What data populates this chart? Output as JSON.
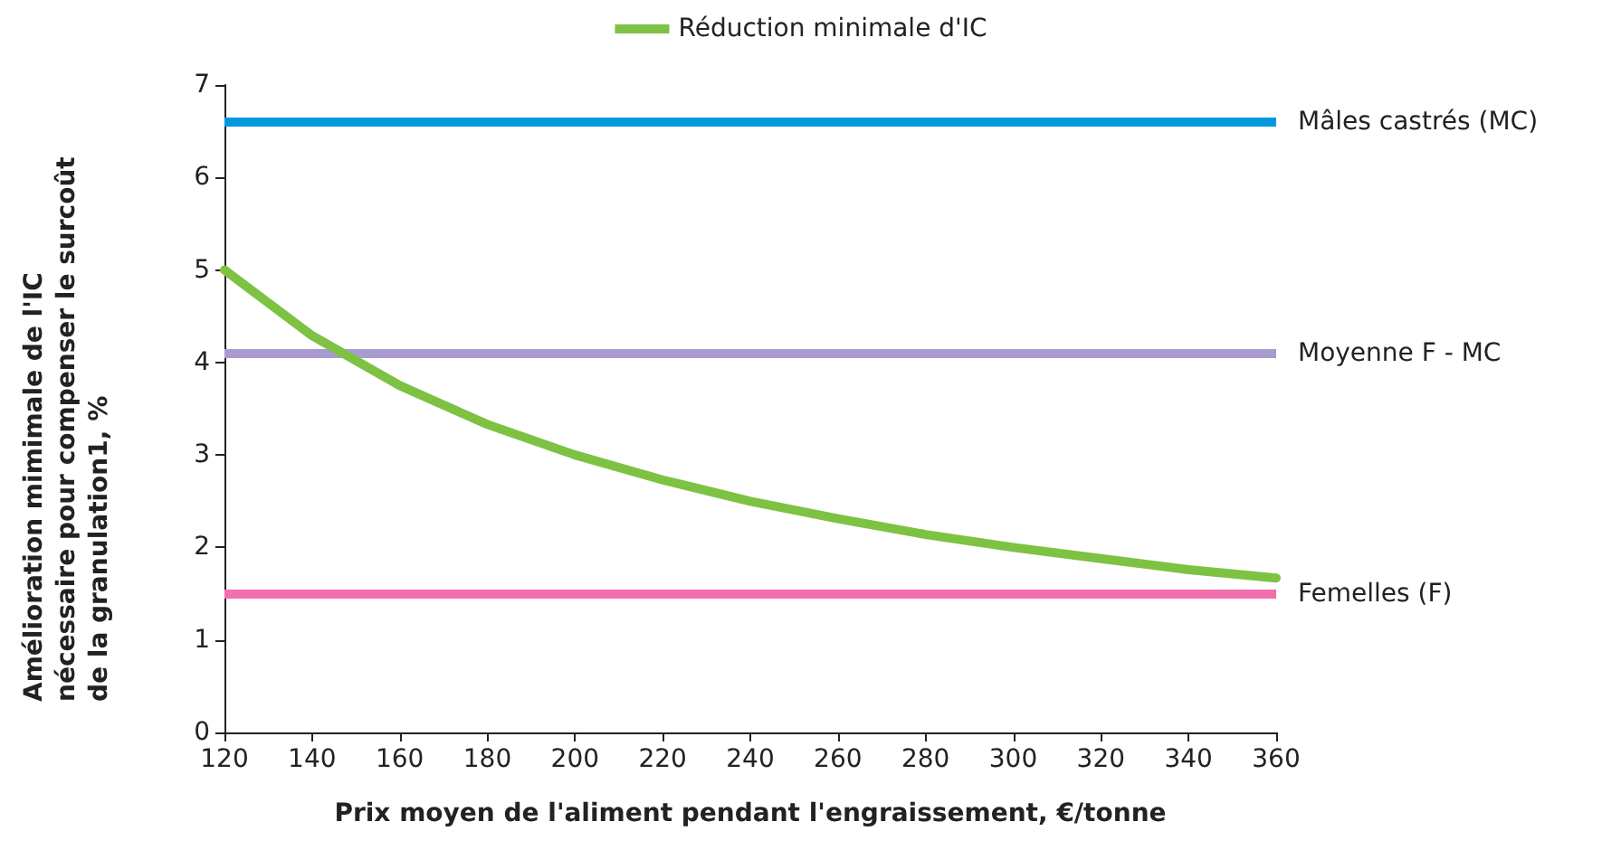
{
  "chart_data": {
    "type": "line",
    "xlabel": "Prix moyen de l'aliment pendant l'engraissement, €/tonne",
    "ylabel": "Amélioration mimimale de l'IC nécessaire pour compenser le surcoût de la granulation1, %",
    "x": [
      120,
      140,
      160,
      180,
      200,
      220,
      240,
      260,
      280,
      300,
      320,
      340,
      360
    ],
    "series": [
      {
        "name": "Réduction minimale d'IC",
        "color": "#7dc242",
        "values": [
          5.0,
          4.29,
          3.75,
          3.33,
          3.0,
          2.73,
          2.5,
          2.31,
          2.14,
          2.0,
          1.88,
          1.76,
          1.67
        ]
      }
    ],
    "ref_lines": [
      {
        "axis": "y",
        "value": 6.6,
        "label": "Mâles castrés (MC)",
        "color": "#0099dd"
      },
      {
        "axis": "y",
        "value": 4.1,
        "label": "Moyenne F - MC",
        "color": "#a99bd0"
      },
      {
        "axis": "y",
        "value": 1.5,
        "label": "Femelles (F)",
        "color": "#f06fac"
      }
    ],
    "xlim": [
      120,
      360
    ],
    "xticks": [
      120,
      140,
      160,
      180,
      200,
      220,
      240,
      260,
      280,
      300,
      320,
      340,
      360
    ],
    "ylim": [
      0,
      7
    ],
    "yticks": [
      0,
      1,
      2,
      3,
      4,
      5,
      6,
      7
    ],
    "grid": false,
    "legend": "top",
    "marker": "none",
    "line_style": "solid"
  }
}
